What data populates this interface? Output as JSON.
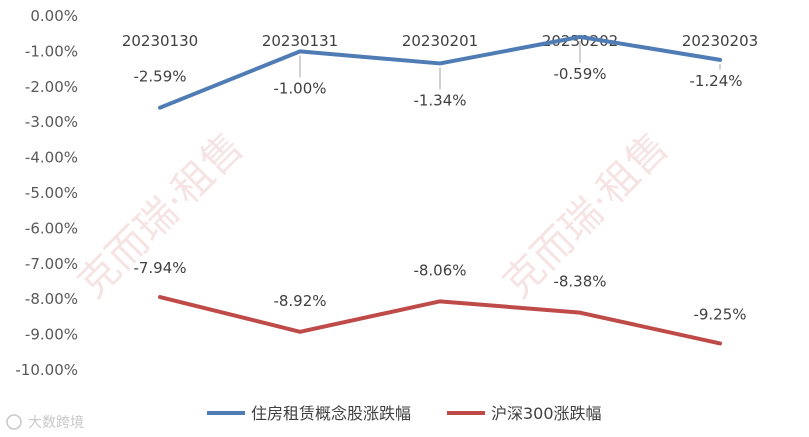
{
  "chart_data": {
    "type": "line",
    "categories": [
      "20230130",
      "20230131",
      "20230201",
      "20230202",
      "20230203"
    ],
    "series": [
      {
        "name": "住房租赁概念股涨跌幅",
        "color": "#4F7CB4",
        "values": [
          -2.59,
          -1.0,
          -1.34,
          -0.59,
          -1.24
        ],
        "labels": [
          "-2.59%",
          "-1.00%",
          "-1.34%",
          "-0.59%",
          "-1.24%"
        ]
      },
      {
        "name": "沪深300涨跌幅",
        "color": "#BE4B48",
        "values": [
          -7.94,
          -8.92,
          -8.06,
          -8.38,
          -9.25
        ],
        "labels": [
          "-7.94%",
          "-8.92%",
          "-8.06%",
          "-8.38%",
          "-9.25%"
        ]
      }
    ],
    "ylim": [
      -10,
      0
    ],
    "yticks": [
      "0.00%",
      "-1.00%",
      "-2.00%",
      "-3.00%",
      "-4.00%",
      "-5.00%",
      "-6.00%",
      "-7.00%",
      "-8.00%",
      "-9.00%",
      "-10.00%"
    ],
    "grid": false,
    "legend": "bottom"
  },
  "watermark": {
    "text": "克而瑞·租售",
    "corner": "大数跨境"
  }
}
